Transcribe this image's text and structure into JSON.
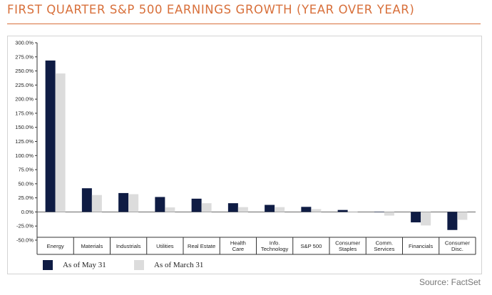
{
  "title": "FIRST QUARTER S&P 500 EARNINGS GROWTH (YEAR OVER YEAR)",
  "source": "Source: FactSet",
  "colors": {
    "title": "#d8703b",
    "series_may": "#0f1c44",
    "series_march": "#dcdcdc"
  },
  "chart_data": {
    "type": "bar",
    "title": "FIRST QUARTER S&P 500 EARNINGS GROWTH (YEAR OVER YEAR)",
    "xlabel": "",
    "ylabel": "",
    "ylim": [
      -50,
      300
    ],
    "yticks": [
      300,
      275,
      250,
      225,
      200,
      175,
      150,
      125,
      100,
      75,
      50,
      25,
      0,
      -25,
      -50
    ],
    "ytick_labels": [
      "300.0%",
      "275.0%",
      "250.0%",
      "225.0%",
      "200.0%",
      "175.0%",
      "150.0%",
      "125.0%",
      "100.0%",
      "75.0%",
      "50.0%",
      "25.0%",
      "0.0%",
      "-25.0%",
      "-50.0%"
    ],
    "grid": false,
    "legend_position": "bottom-left",
    "categories": [
      "Energy",
      "Materials",
      "Industrials",
      "Utilities",
      "Real Estate",
      "Health Care",
      "Info. Technology",
      "S&P 500",
      "Consumer Staples",
      "Comm. Services",
      "Financials",
      "Consumer Disc."
    ],
    "category_lines": [
      [
        "Energy"
      ],
      [
        "Materials"
      ],
      [
        "Industrials"
      ],
      [
        "Utilities"
      ],
      [
        "Real Estate"
      ],
      [
        "Health",
        "Care"
      ],
      [
        "Info.",
        "Technology"
      ],
      [
        "S&P 500"
      ],
      [
        "Consumer",
        "Staples"
      ],
      [
        "Comm.",
        "Services"
      ],
      [
        "Financials"
      ],
      [
        "Consumer",
        "Disc."
      ]
    ],
    "series": [
      {
        "name": "As of May 31",
        "color": "#0f1c44",
        "values": [
          268.5,
          42.0,
          33.5,
          26.5,
          23.5,
          15.5,
          12.5,
          9.0,
          3.5,
          0.5,
          -18.5,
          -32.0
        ]
      },
      {
        "name": "As of March 31",
        "color": "#dcdcdc",
        "values": [
          245.5,
          30.0,
          31.5,
          8.0,
          15.5,
          8.5,
          8.5,
          5.0,
          0.0,
          -6.5,
          -24.0,
          -14.0
        ]
      }
    ]
  }
}
